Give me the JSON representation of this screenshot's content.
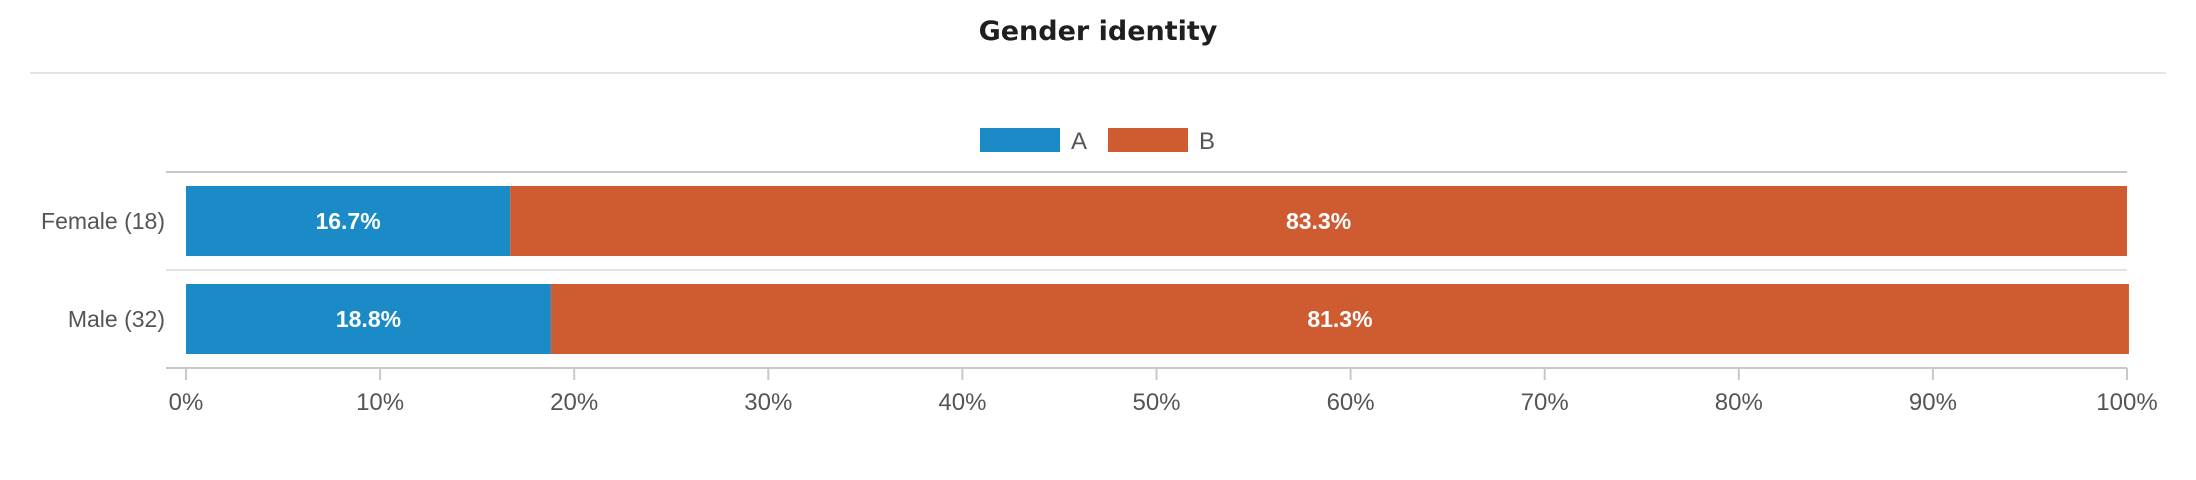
{
  "chart_data": {
    "type": "bar",
    "orientation": "horizontal",
    "stacked": true,
    "title": "Gender identity",
    "categories": [
      "Female (18)",
      "Male (32)"
    ],
    "series": [
      {
        "name": "A",
        "color": "#1a8bc6",
        "values": [
          16.7,
          18.8
        ],
        "labels": [
          "16.7%",
          "18.8%"
        ]
      },
      {
        "name": "B",
        "color": "#cf5b31",
        "values": [
          83.3,
          81.3
        ],
        "labels": [
          "83.3%",
          "81.3%"
        ]
      }
    ],
    "xlim": [
      0,
      100
    ],
    "x_ticks": [
      "0%",
      "10%",
      "20%",
      "30%",
      "40%",
      "50%",
      "60%",
      "70%",
      "80%",
      "90%",
      "100%"
    ],
    "legend_position": "top-center",
    "grid": false
  }
}
